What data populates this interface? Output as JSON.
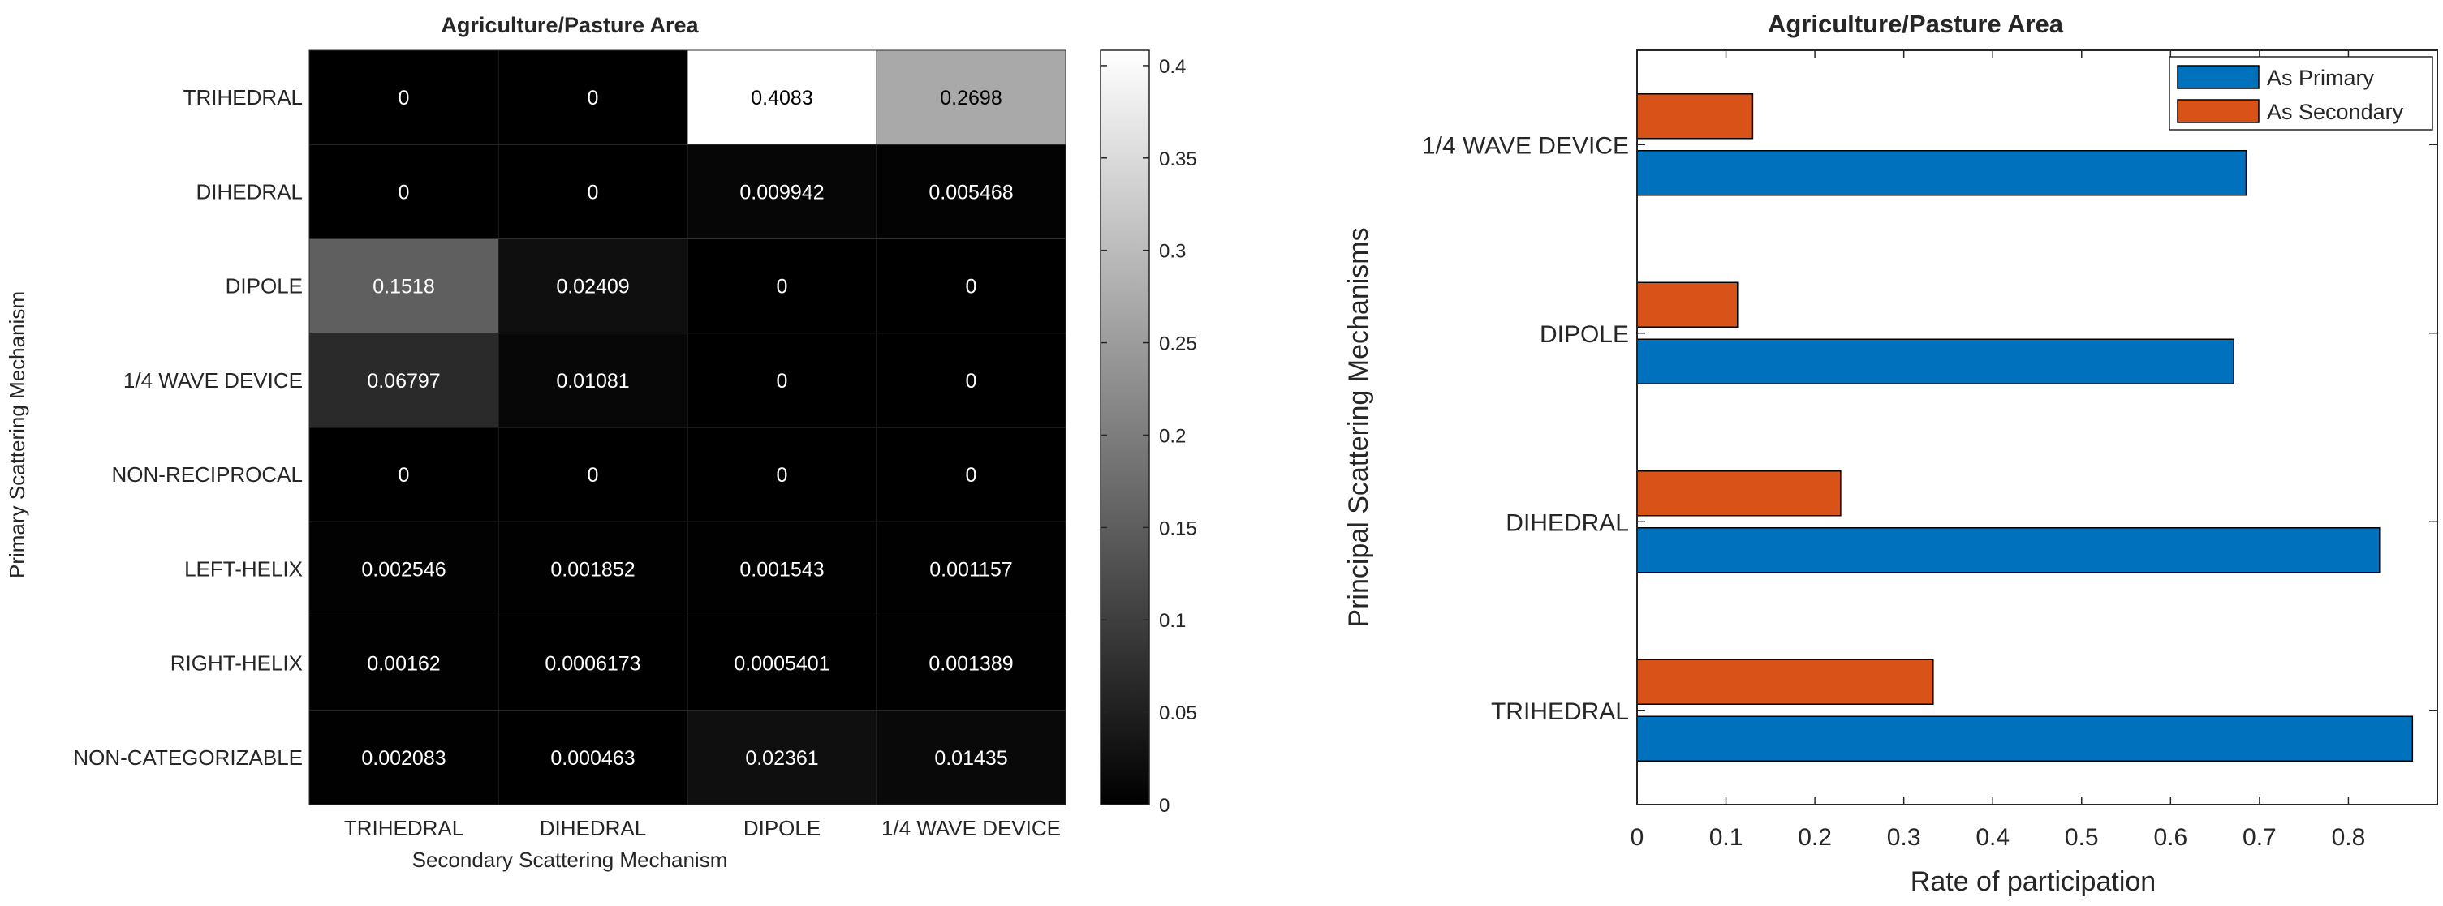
{
  "chart_data": [
    {
      "type": "heatmap",
      "title": "Agriculture/Pasture Area",
      "xlabel": "Secondary Scattering Mechanism",
      "ylabel": "Primary Scattering Mechanism",
      "columns": [
        "TRIHEDRAL",
        "DIHEDRAL",
        "DIPOLE",
        "1/4 WAVE DEVICE"
      ],
      "rows": [
        "TRIHEDRAL",
        "DIHEDRAL",
        "DIPOLE",
        "1/4 WAVE DEVICE",
        "NON-RECIPROCAL",
        "LEFT-HELIX",
        "RIGHT-HELIX",
        "NON-CATEGORIZABLE"
      ],
      "values": [
        [
          0,
          0,
          0.4083,
          0.2698
        ],
        [
          0,
          0,
          0.009942,
          0.005468
        ],
        [
          0.1518,
          0.02409,
          0,
          0
        ],
        [
          0.06797,
          0.01081,
          0,
          0
        ],
        [
          0,
          0,
          0,
          0
        ],
        [
          0.002546,
          0.001852,
          0.001543,
          0.001157
        ],
        [
          0.00162,
          0.0006173,
          0.0005401,
          0.001389
        ],
        [
          0.002083,
          0.000463,
          0.02361,
          0.01435
        ]
      ],
      "labels": [
        [
          "0",
          "0",
          "0.4083",
          "0.2698"
        ],
        [
          "0",
          "0",
          "0.009942",
          "0.005468"
        ],
        [
          "0.1518",
          "0.02409",
          "0",
          "0"
        ],
        [
          "0.06797",
          "0.01081",
          "0",
          "0"
        ],
        [
          "0",
          "0",
          "0",
          "0"
        ],
        [
          "0.002546",
          "0.001852",
          "0.001543",
          "0.001157"
        ],
        [
          "0.00162",
          "0.0006173",
          "0.0005401",
          "0.001389"
        ],
        [
          "0.002083",
          "0.000463",
          "0.02361",
          "0.01435"
        ]
      ],
      "colorbar": {
        "min": 0,
        "max": 0.4083,
        "ticks": [
          0,
          0.05,
          0.1,
          0.15,
          0.2,
          0.25,
          0.3,
          0.35,
          0.4
        ],
        "tick_labels": [
          "0",
          "0.05",
          "0.1",
          "0.15",
          "0.2",
          "0.25",
          "0.3",
          "0.35",
          "0.4"
        ]
      },
      "colormap": "gray"
    },
    {
      "type": "bar",
      "orientation": "horizontal",
      "title": "Agriculture/Pasture Area",
      "xlabel": "Rate of participation",
      "ylabel": "Principal Scattering Mechanisms",
      "categories": [
        "TRIHEDRAL",
        "DIHEDRAL",
        "DIPOLE",
        "1/4 WAVE DEVICE"
      ],
      "series": [
        {
          "name": "As Primary",
          "color": "#0072BD",
          "values": [
            0.872,
            0.835,
            0.671,
            0.685
          ]
        },
        {
          "name": "As Secondary",
          "color": "#D95319",
          "values": [
            0.333,
            0.229,
            0.113,
            0.13
          ]
        }
      ],
      "xlim": [
        0,
        0.9
      ],
      "xticks": [
        0,
        0.1,
        0.2,
        0.3,
        0.4,
        0.5,
        0.6,
        0.7,
        0.8
      ],
      "xtick_labels": [
        "0",
        "0.1",
        "0.2",
        "0.3",
        "0.4",
        "0.5",
        "0.6",
        "0.7",
        "0.8"
      ],
      "legend": "top-right"
    }
  ]
}
